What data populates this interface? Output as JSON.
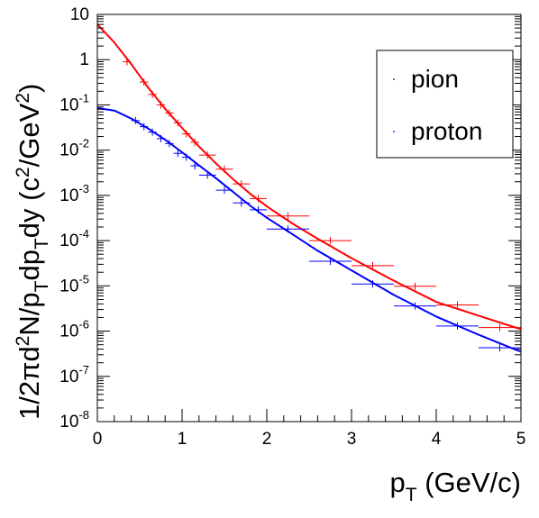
{
  "chart_data": {
    "type": "scatter",
    "xlabel": {
      "base": "p",
      "sub": "T",
      "suffix": " (GeV/c)"
    },
    "ylabel": {
      "text": "1/2πd²N/p_Tdp_Tdy (c²/GeV²)",
      "parts": [
        {
          "t": "1/2πd"
        },
        {
          "t": "2",
          "sup": true
        },
        {
          "t": "N/p"
        },
        {
          "t": "T",
          "sub": true
        },
        {
          "t": "dp"
        },
        {
          "t": "T",
          "sub": true
        },
        {
          "t": "dy (c"
        },
        {
          "t": "2",
          "sup": true
        },
        {
          "t": "/GeV"
        },
        {
          "t": "2",
          "sup": true
        },
        {
          "t": ")"
        }
      ]
    },
    "xlim": [
      0,
      5
    ],
    "ylim": [
      1e-08,
      10
    ],
    "yscale": "log",
    "x_ticks": [
      "0",
      "1",
      "2",
      "3",
      "4",
      "5"
    ],
    "y_ticks": [
      {
        "base": "10",
        "exp": "-8"
      },
      {
        "base": "10",
        "exp": "-7"
      },
      {
        "base": "10",
        "exp": "-6"
      },
      {
        "base": "10",
        "exp": "-5"
      },
      {
        "base": "10",
        "exp": "-4"
      },
      {
        "base": "10",
        "exp": "-3"
      },
      {
        "base": "10",
        "exp": "-2"
      },
      {
        "base": "10",
        "exp": "-1"
      },
      {
        "base": "1",
        "exp": ""
      },
      {
        "base": "10",
        "exp": ""
      }
    ],
    "legend_position": "top-right",
    "series": [
      {
        "name": "pion",
        "color": "#ff0000",
        "points": [
          {
            "x": 0.35,
            "xerr": 0.05,
            "y": 0.9
          },
          {
            "x": 0.55,
            "xerr": 0.05,
            "y": 0.32
          },
          {
            "x": 0.65,
            "xerr": 0.05,
            "y": 0.17
          },
          {
            "x": 0.75,
            "xerr": 0.05,
            "y": 0.1
          },
          {
            "x": 0.85,
            "xerr": 0.05,
            "y": 0.066
          },
          {
            "x": 0.95,
            "xerr": 0.05,
            "y": 0.04
          },
          {
            "x": 1.05,
            "xerr": 0.05,
            "y": 0.023
          },
          {
            "x": 1.15,
            "xerr": 0.05,
            "y": 0.015
          },
          {
            "x": 1.3,
            "xerr": 0.1,
            "y": 0.0078
          },
          {
            "x": 1.5,
            "xerr": 0.1,
            "y": 0.0038
          },
          {
            "x": 1.7,
            "xerr": 0.1,
            "y": 0.0018
          },
          {
            "x": 1.9,
            "xerr": 0.1,
            "y": 0.00085
          },
          {
            "x": 2.25,
            "xerr": 0.25,
            "y": 0.00035
          },
          {
            "x": 2.75,
            "xerr": 0.25,
            "y": 0.0001
          },
          {
            "x": 3.25,
            "xerr": 0.25,
            "y": 2.8e-05
          },
          {
            "x": 3.75,
            "xerr": 0.25,
            "y": 9.8e-06
          },
          {
            "x": 4.25,
            "xerr": 0.25,
            "y": 3.8e-06
          },
          {
            "x": 4.75,
            "xerr": 0.25,
            "y": 1.2e-06
          }
        ],
        "curve": [
          [
            0,
            6.0
          ],
          [
            0.2,
            2.4
          ],
          [
            0.4,
            0.8
          ],
          [
            0.6,
            0.24
          ],
          [
            0.8,
            0.082
          ],
          [
            1.0,
            0.031
          ],
          [
            1.2,
            0.012
          ],
          [
            1.4,
            0.0051
          ],
          [
            1.6,
            0.0023
          ],
          [
            1.8,
            0.0011
          ],
          [
            2.0,
            0.00057
          ],
          [
            2.3,
            0.00024
          ],
          [
            2.6,
            0.00011
          ],
          [
            3.0,
            4.1e-05
          ],
          [
            3.5,
            1.3e-05
          ],
          [
            4.0,
            4.4e-06
          ],
          [
            4.5,
            2.2e-06
          ],
          [
            5.0,
            1.1e-06
          ]
        ]
      },
      {
        "name": "proton",
        "color": "#0000ff",
        "points": [
          {
            "x": 0.45,
            "xerr": 0.05,
            "y": 0.045
          },
          {
            "x": 0.55,
            "xerr": 0.05,
            "y": 0.033
          },
          {
            "x": 0.65,
            "xerr": 0.05,
            "y": 0.025
          },
          {
            "x": 0.75,
            "xerr": 0.05,
            "y": 0.018
          },
          {
            "x": 0.85,
            "xerr": 0.05,
            "y": 0.014
          },
          {
            "x": 0.95,
            "xerr": 0.05,
            "y": 0.0085
          },
          {
            "x": 1.05,
            "xerr": 0.05,
            "y": 0.007
          },
          {
            "x": 1.15,
            "xerr": 0.05,
            "y": 0.0045
          },
          {
            "x": 1.3,
            "xerr": 0.1,
            "y": 0.0028
          },
          {
            "x": 1.5,
            "xerr": 0.1,
            "y": 0.0013
          },
          {
            "x": 1.7,
            "xerr": 0.1,
            "y": 0.00068
          },
          {
            "x": 1.9,
            "xerr": 0.1,
            "y": 0.00048
          },
          {
            "x": 2.25,
            "xerr": 0.25,
            "y": 0.00018
          },
          {
            "x": 2.75,
            "xerr": 0.25,
            "y": 3.5e-05
          },
          {
            "x": 3.25,
            "xerr": 0.25,
            "y": 1.1e-05
          },
          {
            "x": 3.75,
            "xerr": 0.25,
            "y": 3.6e-06
          },
          {
            "x": 4.25,
            "xerr": 0.25,
            "y": 1.3e-06
          },
          {
            "x": 4.75,
            "xerr": 0.25,
            "y": 4.3e-07
          }
        ],
        "curve": [
          [
            0,
            0.085
          ],
          [
            0.2,
            0.075
          ],
          [
            0.4,
            0.05
          ],
          [
            0.6,
            0.03
          ],
          [
            0.8,
            0.017
          ],
          [
            1.0,
            0.009
          ],
          [
            1.2,
            0.0046
          ],
          [
            1.4,
            0.0024
          ],
          [
            1.6,
            0.0012
          ],
          [
            1.8,
            0.0006
          ],
          [
            2.0,
            0.00032
          ],
          [
            2.3,
            0.00014
          ],
          [
            2.6,
            6e-05
          ],
          [
            3.0,
            2.2e-05
          ],
          [
            3.5,
            6.3e-06
          ],
          [
            4.0,
            2.1e-06
          ],
          [
            4.5,
            8.3e-07
          ],
          [
            5.0,
            3.5e-07
          ]
        ]
      }
    ]
  }
}
